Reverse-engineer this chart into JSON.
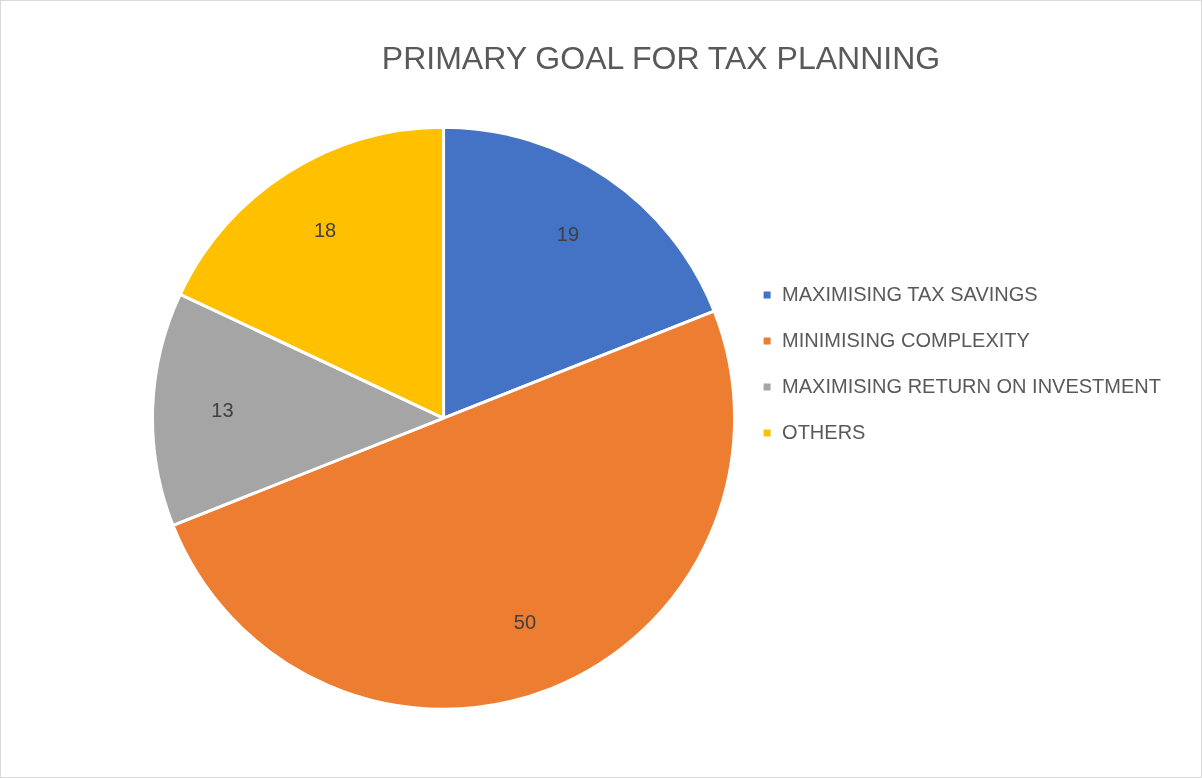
{
  "chart_data": {
    "type": "pie",
    "title": "PRIMARY GOAL FOR TAX PLANNING",
    "categories": [
      "MAXIMISING TAX SAVINGS",
      "MINIMISING COMPLEXITY",
      "MAXIMISING RETURN ON INVESTMENT",
      "OTHERS"
    ],
    "values": [
      19,
      50,
      13,
      18
    ],
    "colors": [
      "#4472c4",
      "#ed7d31",
      "#a5a5a5",
      "#ffc000"
    ],
    "data_labels": true,
    "legend": "right"
  }
}
